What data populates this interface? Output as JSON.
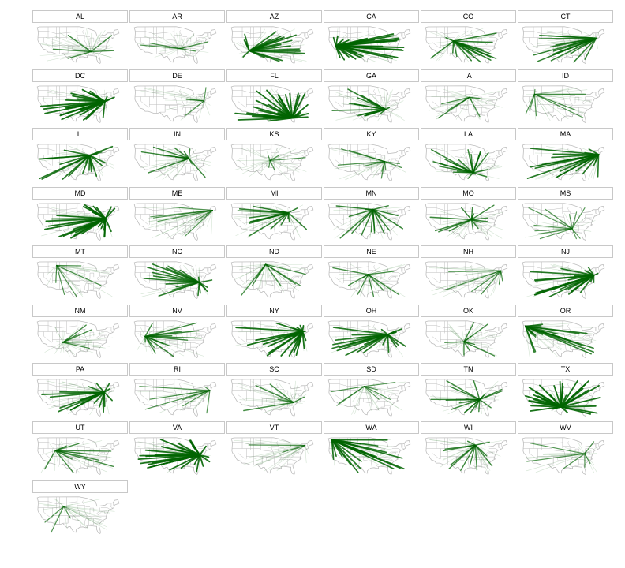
{
  "chart_data": {
    "type": "small-multiples-flow-map",
    "title": "",
    "xlabel": "",
    "ylabel": "",
    "layout": {
      "columns": 6,
      "rows": 9
    },
    "colors": {
      "flow": "#006400",
      "state_border": "#bdbdbd",
      "strip_border": "#c8c8c8",
      "background": "#ffffff"
    },
    "facets": [
      {
        "state": "AL",
        "hub": [
          -86.8,
          32.8
        ],
        "intensity": 0.55
      },
      {
        "state": "AR",
        "hub": [
          -92.4,
          34.8
        ],
        "intensity": 0.4
      },
      {
        "state": "AZ",
        "hub": [
          -112.0,
          33.4
        ],
        "intensity": 0.85
      },
      {
        "state": "CA",
        "hub": [
          -119.5,
          36.5
        ],
        "intensity": 1.0
      },
      {
        "state": "CO",
        "hub": [
          -104.9,
          39.7
        ],
        "intensity": 0.7
      },
      {
        "state": "CT",
        "hub": [
          -72.7,
          41.6
        ],
        "intensity": 0.7
      },
      {
        "state": "DC",
        "hub": [
          -77.0,
          38.9
        ],
        "intensity": 1.0
      },
      {
        "state": "DE",
        "hub": [
          -75.5,
          39.2
        ],
        "intensity": 0.3
      },
      {
        "state": "FL",
        "hub": [
          -81.7,
          28.2
        ],
        "intensity": 1.0
      },
      {
        "state": "GA",
        "hub": [
          -84.4,
          33.8
        ],
        "intensity": 0.75
      },
      {
        "state": "IA",
        "hub": [
          -93.6,
          41.6
        ],
        "intensity": 0.45
      },
      {
        "state": "ID",
        "hub": [
          -116.2,
          43.6
        ],
        "intensity": 0.35
      },
      {
        "state": "IL",
        "hub": [
          -87.8,
          41.8
        ],
        "intensity": 0.85
      },
      {
        "state": "IN",
        "hub": [
          -86.2,
          39.8
        ],
        "intensity": 0.6
      },
      {
        "state": "KS",
        "hub": [
          -97.4,
          38.5
        ],
        "intensity": 0.4
      },
      {
        "state": "KY",
        "hub": [
          -85.0,
          37.8
        ],
        "intensity": 0.4
      },
      {
        "state": "LA",
        "hub": [
          -91.1,
          30.5
        ],
        "intensity": 0.65
      },
      {
        "state": "MA",
        "hub": [
          -71.1,
          42.3
        ],
        "intensity": 0.85
      },
      {
        "state": "MD",
        "hub": [
          -76.6,
          39.2
        ],
        "intensity": 1.0
      },
      {
        "state": "ME",
        "hub": [
          -69.5,
          44.5
        ],
        "intensity": 0.35
      },
      {
        "state": "MI",
        "hub": [
          -84.5,
          42.9
        ],
        "intensity": 0.7
      },
      {
        "state": "MN",
        "hub": [
          -93.3,
          45.0
        ],
        "intensity": 0.65
      },
      {
        "state": "MO",
        "hub": [
          -92.3,
          38.5
        ],
        "intensity": 0.6
      },
      {
        "state": "MS",
        "hub": [
          -89.7,
          32.6
        ],
        "intensity": 0.3
      },
      {
        "state": "MT",
        "hub": [
          -111.0,
          46.6
        ],
        "intensity": 0.35
      },
      {
        "state": "NC",
        "hub": [
          -78.9,
          35.6
        ],
        "intensity": 0.8
      },
      {
        "state": "ND",
        "hub": [
          -100.5,
          47.3
        ],
        "intensity": 0.45
      },
      {
        "state": "NE",
        "hub": [
          -96.7,
          40.8
        ],
        "intensity": 0.5
      },
      {
        "state": "NH",
        "hub": [
          -71.5,
          43.2
        ],
        "intensity": 0.4
      },
      {
        "state": "NJ",
        "hub": [
          -74.4,
          40.2
        ],
        "intensity": 0.85
      },
      {
        "state": "NM",
        "hub": [
          -106.6,
          35.1
        ],
        "intensity": 0.5
      },
      {
        "state": "NV",
        "hub": [
          -117.0,
          39.0
        ],
        "intensity": 0.6
      },
      {
        "state": "NY",
        "hub": [
          -74.5,
          42.2
        ],
        "intensity": 1.0
      },
      {
        "state": "OH",
        "hub": [
          -82.9,
          40.2
        ],
        "intensity": 0.85
      },
      {
        "state": "OK",
        "hub": [
          -97.5,
          35.5
        ],
        "intensity": 0.55
      },
      {
        "state": "OR",
        "hub": [
          -122.7,
          45.5
        ],
        "intensity": 0.75
      },
      {
        "state": "PA",
        "hub": [
          -77.5,
          40.6
        ],
        "intensity": 0.9
      },
      {
        "state": "RI",
        "hub": [
          -71.4,
          41.8
        ],
        "intensity": 0.35
      },
      {
        "state": "SC",
        "hub": [
          -80.9,
          34.0
        ],
        "intensity": 0.55
      },
      {
        "state": "SD",
        "hub": [
          -99.4,
          44.4
        ],
        "intensity": 0.3
      },
      {
        "state": "TN",
        "hub": [
          -86.5,
          35.9
        ],
        "intensity": 0.6
      },
      {
        "state": "TX",
        "hub": [
          -97.5,
          31.2
        ],
        "intensity": 1.0
      },
      {
        "state": "UT",
        "hub": [
          -111.9,
          40.7
        ],
        "intensity": 0.5
      },
      {
        "state": "VA",
        "hub": [
          -78.5,
          37.7
        ],
        "intensity": 1.0
      },
      {
        "state": "VT",
        "hub": [
          -72.7,
          44.0
        ],
        "intensity": 0.3
      },
      {
        "state": "WA",
        "hub": [
          -122.3,
          47.6
        ],
        "intensity": 0.85
      },
      {
        "state": "WI",
        "hub": [
          -89.5,
          44.2
        ],
        "intensity": 0.6
      },
      {
        "state": "WV",
        "hub": [
          -80.9,
          38.6
        ],
        "intensity": 0.35
      },
      {
        "state": "WY",
        "hub": [
          -106.0,
          42.8
        ],
        "intensity": 0.35
      }
    ]
  }
}
